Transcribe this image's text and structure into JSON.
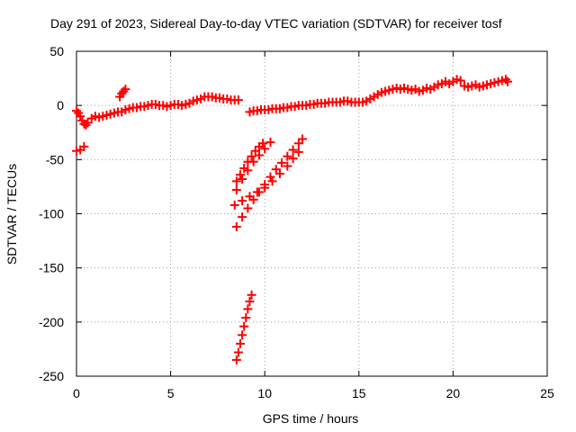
{
  "chart_data": {
    "type": "scatter",
    "title": "Day 291 of 2023, Sidereal Day-to-day VTEC variation (SDTVAR) for receiver tosf",
    "xlabel": "GPS time / hours",
    "ylabel": "SDTVAR / TECUs",
    "xlim": [
      0,
      25
    ],
    "ylim": [
      -250,
      50
    ],
    "xticks": [
      "0",
      "5",
      "10",
      "15",
      "20",
      "25"
    ],
    "yticks": [
      "50",
      "0",
      "-50",
      "-100",
      "-150",
      "-200",
      "-250"
    ],
    "grid": true,
    "marker_color": "#ff0000",
    "series": [
      {
        "points": [
          [
            0.0,
            -5
          ],
          [
            0.1,
            -7
          ],
          [
            0.2,
            -10
          ],
          [
            0.3,
            -14
          ],
          [
            0.4,
            -17
          ],
          [
            0.5,
            -18
          ],
          [
            0.6,
            -16
          ],
          [
            0.8,
            -12
          ],
          [
            1.0,
            -10
          ],
          [
            1.2,
            -11
          ],
          [
            1.4,
            -10
          ],
          [
            1.6,
            -9
          ],
          [
            1.8,
            -8
          ],
          [
            2.0,
            -7
          ],
          [
            2.2,
            -6
          ],
          [
            2.4,
            -6
          ],
          [
            2.6,
            -4
          ],
          [
            2.8,
            -3
          ],
          [
            3.0,
            -2
          ],
          [
            3.2,
            -2
          ],
          [
            3.4,
            -1
          ],
          [
            3.6,
            -1
          ],
          [
            3.8,
            0
          ],
          [
            4.0,
            1
          ],
          [
            4.2,
            1
          ],
          [
            4.4,
            0
          ],
          [
            4.6,
            0
          ],
          [
            4.8,
            -1
          ],
          [
            5.0,
            0
          ],
          [
            5.2,
            1
          ],
          [
            5.4,
            1
          ],
          [
            5.6,
            0
          ],
          [
            5.8,
            1
          ],
          [
            6.0,
            2
          ],
          [
            6.2,
            4
          ],
          [
            6.4,
            5
          ],
          [
            6.6,
            6
          ],
          [
            6.8,
            8
          ],
          [
            7.0,
            8
          ],
          [
            7.2,
            8
          ],
          [
            7.4,
            7
          ],
          [
            7.6,
            7
          ],
          [
            7.8,
            6
          ],
          [
            8.0,
            6
          ],
          [
            8.2,
            5
          ],
          [
            8.4,
            5
          ],
          [
            8.6,
            5
          ],
          [
            9.2,
            -6
          ],
          [
            9.4,
            -5
          ],
          [
            9.6,
            -5
          ],
          [
            9.8,
            -4
          ],
          [
            10.0,
            -4
          ],
          [
            10.2,
            -4
          ],
          [
            10.4,
            -3
          ],
          [
            10.6,
            -3
          ],
          [
            10.8,
            -3
          ],
          [
            11.0,
            -2
          ],
          [
            11.2,
            -2
          ],
          [
            11.4,
            -1
          ],
          [
            11.6,
            -1
          ],
          [
            11.8,
            0
          ],
          [
            12.0,
            0
          ],
          [
            12.2,
            0
          ],
          [
            12.4,
            1
          ],
          [
            12.6,
            1
          ],
          [
            12.8,
            2
          ],
          [
            13.0,
            2
          ],
          [
            13.2,
            2
          ],
          [
            13.4,
            3
          ],
          [
            13.6,
            3
          ],
          [
            13.8,
            3
          ],
          [
            14.0,
            3
          ],
          [
            14.2,
            4
          ],
          [
            14.4,
            4
          ],
          [
            14.6,
            3
          ],
          [
            14.8,
            3
          ],
          [
            15.0,
            3
          ],
          [
            15.2,
            3
          ],
          [
            15.4,
            4
          ],
          [
            15.6,
            6
          ],
          [
            15.8,
            8
          ],
          [
            16.0,
            10
          ],
          [
            16.2,
            12
          ],
          [
            16.4,
            13
          ],
          [
            16.6,
            14
          ],
          [
            16.8,
            15
          ],
          [
            17.0,
            16
          ],
          [
            17.2,
            15
          ],
          [
            17.4,
            16
          ],
          [
            17.6,
            15
          ],
          [
            17.8,
            14
          ],
          [
            18.0,
            15
          ],
          [
            18.2,
            13
          ],
          [
            18.4,
            14
          ],
          [
            18.6,
            16
          ],
          [
            18.8,
            15
          ],
          [
            19.0,
            17
          ],
          [
            19.2,
            19
          ],
          [
            19.4,
            20
          ],
          [
            19.6,
            22
          ],
          [
            19.8,
            20
          ],
          [
            20.0,
            22
          ],
          [
            20.2,
            24
          ],
          [
            20.4,
            23
          ],
          [
            20.6,
            18
          ],
          [
            20.8,
            17
          ],
          [
            21.0,
            18
          ],
          [
            21.2,
            19
          ],
          [
            21.4,
            17
          ],
          [
            21.6,
            18
          ],
          [
            21.8,
            19
          ],
          [
            22.0,
            20
          ],
          [
            22.2,
            21
          ],
          [
            22.4,
            22
          ],
          [
            22.6,
            23
          ],
          [
            22.8,
            24
          ],
          [
            22.9,
            22
          ],
          [
            0.0,
            -42
          ],
          [
            0.2,
            -41
          ],
          [
            0.4,
            -38
          ],
          [
            2.3,
            8
          ],
          [
            2.4,
            11
          ],
          [
            2.5,
            13
          ],
          [
            2.6,
            15
          ],
          [
            8.5,
            -70
          ],
          [
            8.7,
            -64
          ],
          [
            8.9,
            -58
          ],
          [
            9.1,
            -52
          ],
          [
            9.3,
            -47
          ],
          [
            9.5,
            -42
          ],
          [
            9.7,
            -38
          ],
          [
            9.9,
            -35
          ],
          [
            8.5,
            -78
          ],
          [
            8.8,
            -68
          ],
          [
            9.1,
            -60
          ],
          [
            9.4,
            -52
          ],
          [
            9.7,
            -46
          ],
          [
            10.0,
            -40
          ],
          [
            10.3,
            -34
          ],
          [
            8.5,
            -112
          ],
          [
            8.8,
            -103
          ],
          [
            9.1,
            -95
          ],
          [
            9.4,
            -87
          ],
          [
            9.7,
            -80
          ],
          [
            10.0,
            -73
          ],
          [
            10.3,
            -66
          ],
          [
            10.6,
            -59
          ],
          [
            10.9,
            -53
          ],
          [
            11.2,
            -47
          ],
          [
            11.5,
            -41
          ],
          [
            11.8,
            -35
          ],
          [
            12.0,
            -31
          ],
          [
            8.4,
            -92
          ],
          [
            8.8,
            -88
          ],
          [
            9.2,
            -84
          ],
          [
            9.6,
            -80
          ],
          [
            10.0,
            -76
          ],
          [
            10.4,
            -70
          ],
          [
            10.8,
            -63
          ],
          [
            11.2,
            -56
          ],
          [
            11.5,
            -49
          ],
          [
            11.8,
            -43
          ],
          [
            8.5,
            -235
          ],
          [
            8.6,
            -228
          ],
          [
            8.7,
            -220
          ],
          [
            8.8,
            -212
          ],
          [
            8.9,
            -204
          ],
          [
            9.0,
            -196
          ],
          [
            9.1,
            -188
          ],
          [
            9.2,
            -181
          ],
          [
            9.3,
            -175
          ]
        ]
      }
    ]
  }
}
